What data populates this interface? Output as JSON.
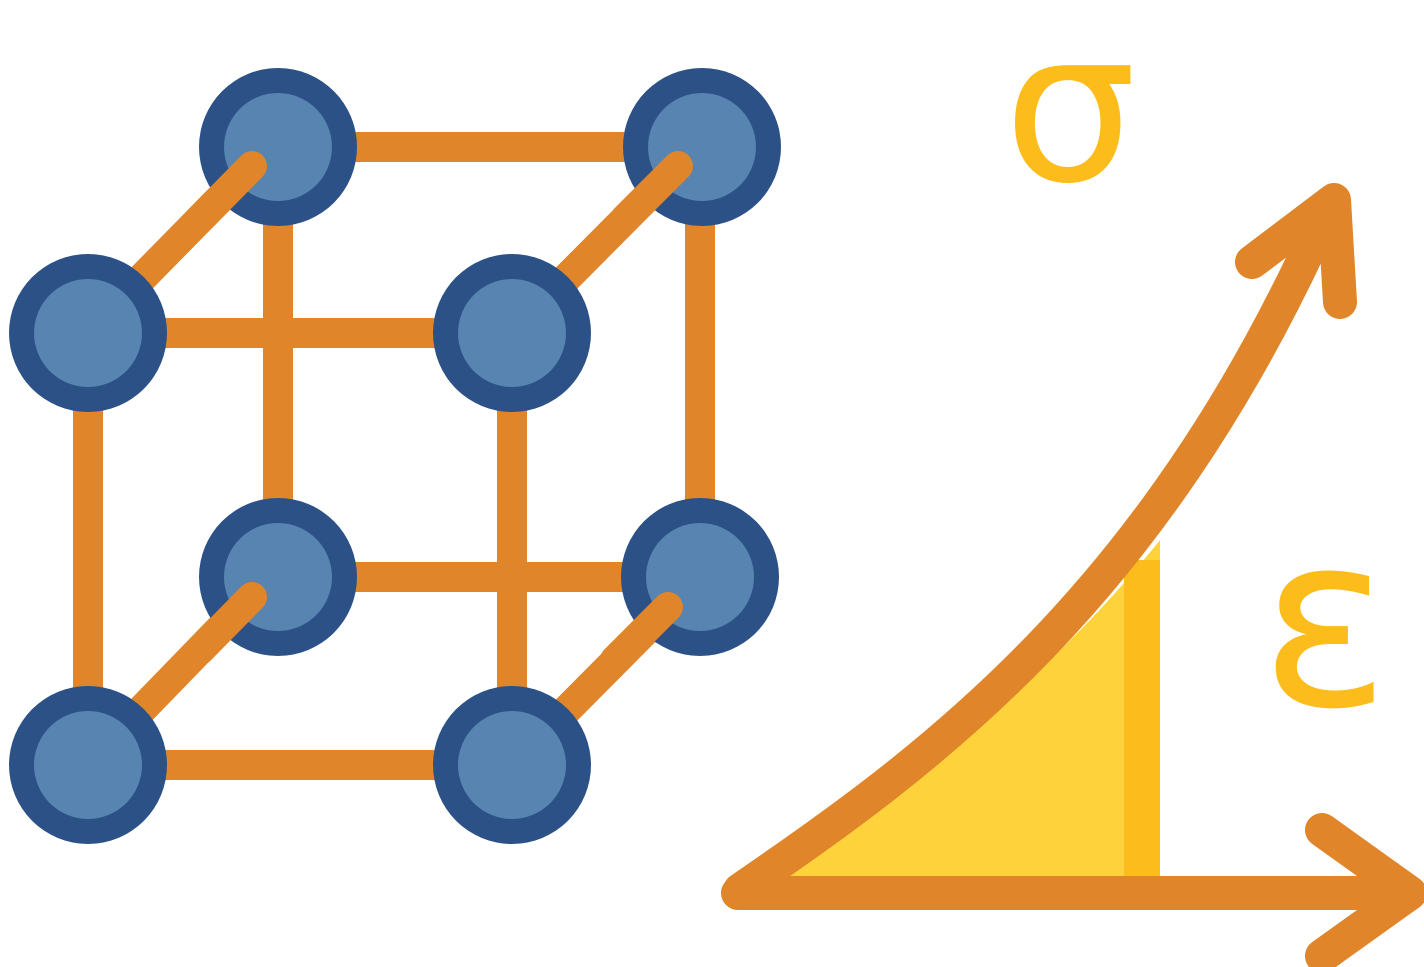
{
  "illustration": {
    "lattice": {
      "name": "cubic-crystal-lattice",
      "bond_color": "#e08529",
      "atom_outer_color": "#2c5187",
      "atom_inner_color": "#5784b0",
      "atoms": [
        {
          "id": "back-top-left"
        },
        {
          "id": "back-top-right"
        },
        {
          "id": "back-bottom-left"
        },
        {
          "id": "back-bottom-right"
        },
        {
          "id": "front-top-left"
        },
        {
          "id": "front-top-right"
        },
        {
          "id": "front-bottom-left"
        },
        {
          "id": "front-bottom-right"
        }
      ]
    },
    "graph": {
      "name": "stress-strain-curve",
      "axis_color": "#e08529",
      "fill_color": "#fdd23a",
      "fill_edge_color": "#fbbc1c",
      "stress_symbol": "σ",
      "strain_symbol": "ε",
      "symbol_color": "#fbbc1c"
    }
  }
}
